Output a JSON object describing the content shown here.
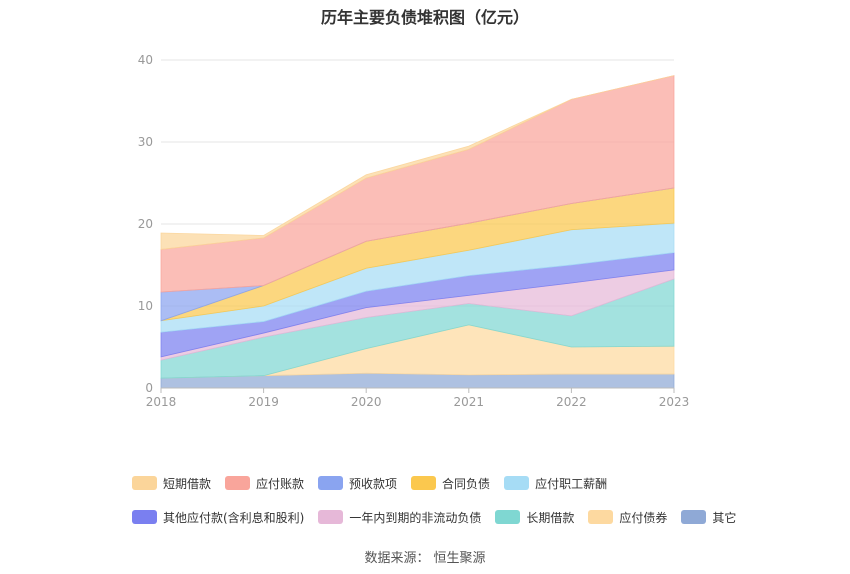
{
  "chart_data": {
    "type": "area",
    "title": "历年主要负债堆积图（亿元）",
    "xlabel": "",
    "ylabel": "",
    "x": [
      "2018",
      "2019",
      "2020",
      "2021",
      "2022",
      "2023"
    ],
    "ylim": [
      0,
      40
    ],
    "yticks": [
      0,
      10,
      20,
      30,
      40
    ],
    "grid": true,
    "legend_position": "bottom",
    "series": [
      {
        "name": "其它",
        "color": "#8fa9d6",
        "values": [
          1.2,
          1.5,
          1.8,
          1.6,
          1.7,
          1.7
        ]
      },
      {
        "name": "应付债券",
        "color": "#fdd9a0",
        "values": [
          0,
          0,
          3.0,
          6.1,
          3.3,
          3.4
        ]
      },
      {
        "name": "长期借款",
        "color": "#7fd7d2",
        "values": [
          2.2,
          4.7,
          3.8,
          2.6,
          3.8,
          8.2
        ]
      },
      {
        "name": "一年内到期的非流动负债",
        "color": "#e6b8d8",
        "values": [
          0.4,
          0.5,
          1.2,
          1.0,
          4.0,
          1.1
        ]
      },
      {
        "name": "其他应付款(含利息和股利)",
        "color": "#7a7ff0",
        "values": [
          3.0,
          1.4,
          2.0,
          2.4,
          2.2,
          2.1
        ]
      },
      {
        "name": "应付职工薪酬",
        "color": "#a6dcf5",
        "values": [
          1.4,
          1.9,
          2.8,
          3.1,
          4.3,
          3.6
        ]
      },
      {
        "name": "合同负债",
        "color": "#fbc84e",
        "values": [
          0,
          2.5,
          3.3,
          3.3,
          3.2,
          4.3
        ]
      },
      {
        "name": "预收款项",
        "color": "#8aa4f0",
        "values": [
          3.5,
          0,
          0,
          0,
          0,
          0
        ]
      },
      {
        "name": "应付账款",
        "color": "#f9a59b",
        "values": [
          5.2,
          5.8,
          7.7,
          9.0,
          12.7,
          13.7
        ]
      },
      {
        "name": "短期借款",
        "color": "#fbd59a",
        "values": [
          2.0,
          0.3,
          0.4,
          0.4,
          0,
          0
        ]
      }
    ]
  },
  "legend": {
    "rows": [
      [
        {
          "label": "短期借款",
          "color": "#fbd59a"
        },
        {
          "label": "应付账款",
          "color": "#f9a59b"
        },
        {
          "label": "预收款项",
          "color": "#8aa4f0"
        },
        {
          "label": "合同负债",
          "color": "#fbc84e"
        },
        {
          "label": "应付职工薪酬",
          "color": "#a6dcf5"
        }
      ],
      [
        {
          "label": "其他应付款(含利息和股利)",
          "color": "#7a7ff0"
        },
        {
          "label": "一年内到期的非流动负债",
          "color": "#e6b8d8"
        },
        {
          "label": "长期借款",
          "color": "#7fd7d2"
        },
        {
          "label": "应付债券",
          "color": "#fdd9a0"
        },
        {
          "label": "其它",
          "color": "#8fa9d6"
        }
      ]
    ]
  },
  "footer": {
    "source_label": "数据来源：",
    "source_name": "恒生聚源"
  }
}
